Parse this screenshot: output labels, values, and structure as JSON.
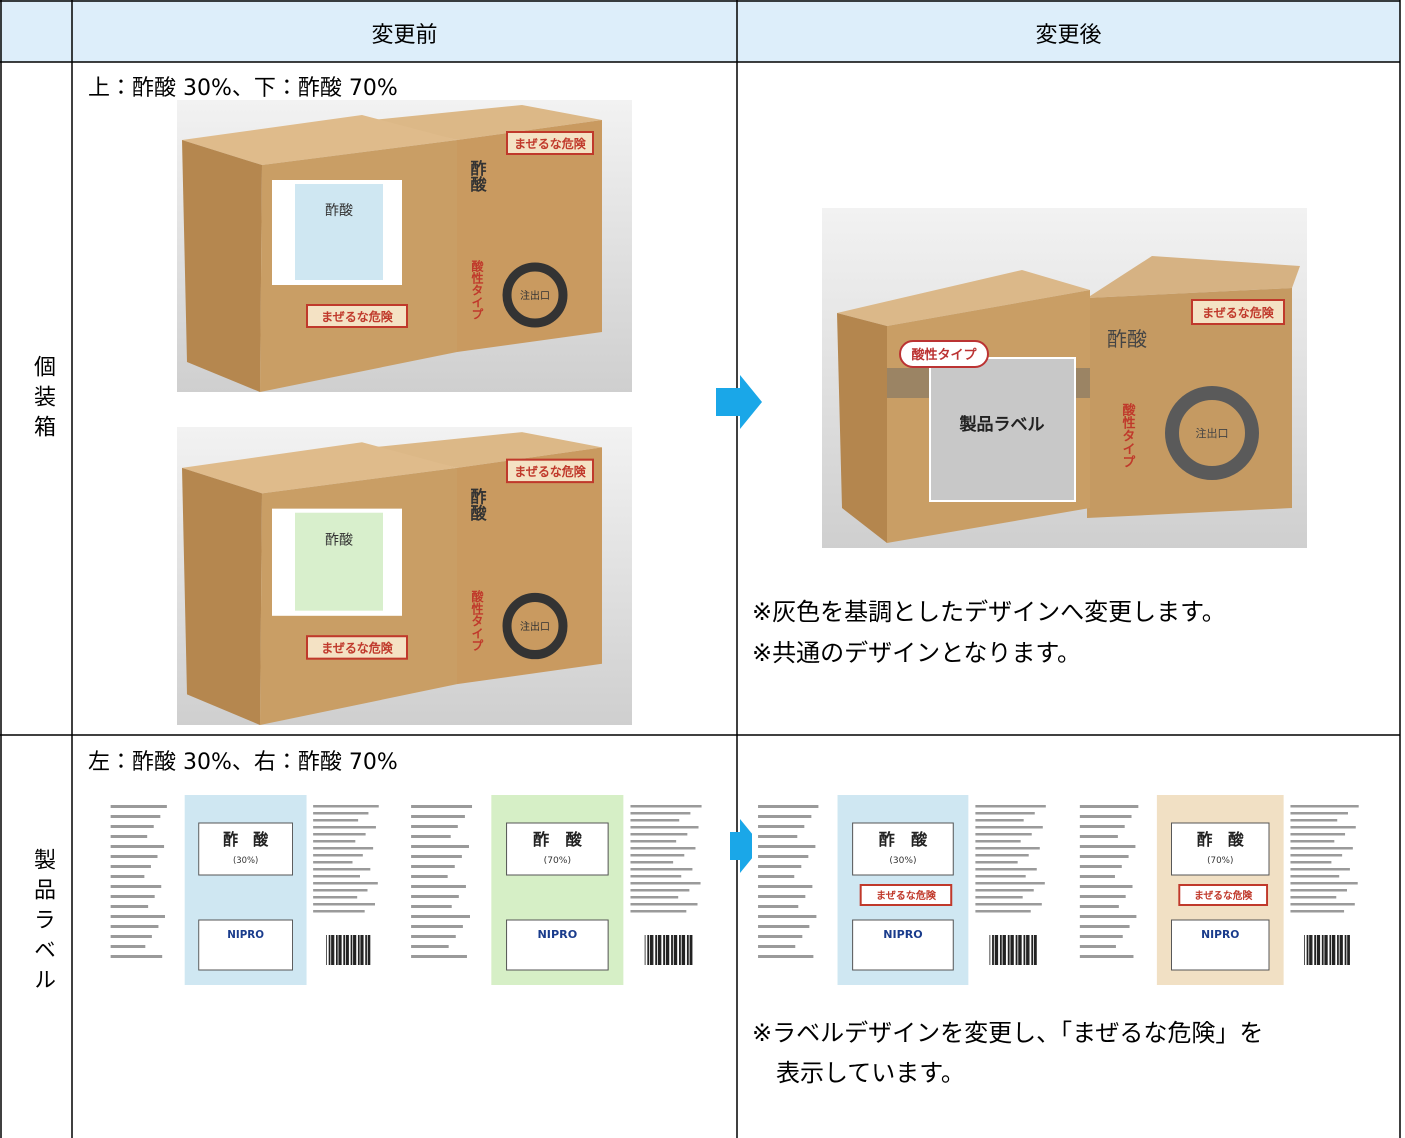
{
  "table": {
    "header": {
      "before": "変更前",
      "after": "変更後"
    },
    "rows": [
      {
        "label": "個装箱",
        "before": {
          "caption": "上：酢酸 30%、下：酢酸 70%"
        },
        "after": {
          "notes": [
            "※灰色を基調としたデザインへ変更します。",
            "※共通のデザインとなります。"
          ]
        }
      },
      {
        "label": "製品ラベル",
        "before": {
          "caption": "左：酢酸 30%、右：酢酸 70%"
        },
        "after": {
          "notes": [
            "※ラベルデザインを変更し、「まぜるな危険」を",
            "表示しています。"
          ]
        }
      }
    ]
  },
  "images": {
    "box_before": {
      "product": "酢酸",
      "warning": "まぜるな危険",
      "spout": "注出口",
      "type": "酸性タイプ"
    },
    "box_after": {
      "label_area": "製品ラベル",
      "type": "酸性タイプ",
      "spout": "注出口",
      "warning": "まぜるな危険",
      "product": "酢酸"
    },
    "labels": {
      "product": "酢　酸",
      "concentration_30": "(30%)",
      "concentration_70": "(70%)",
      "brand": "NIPRO",
      "warning": "まぜるな危険"
    }
  }
}
